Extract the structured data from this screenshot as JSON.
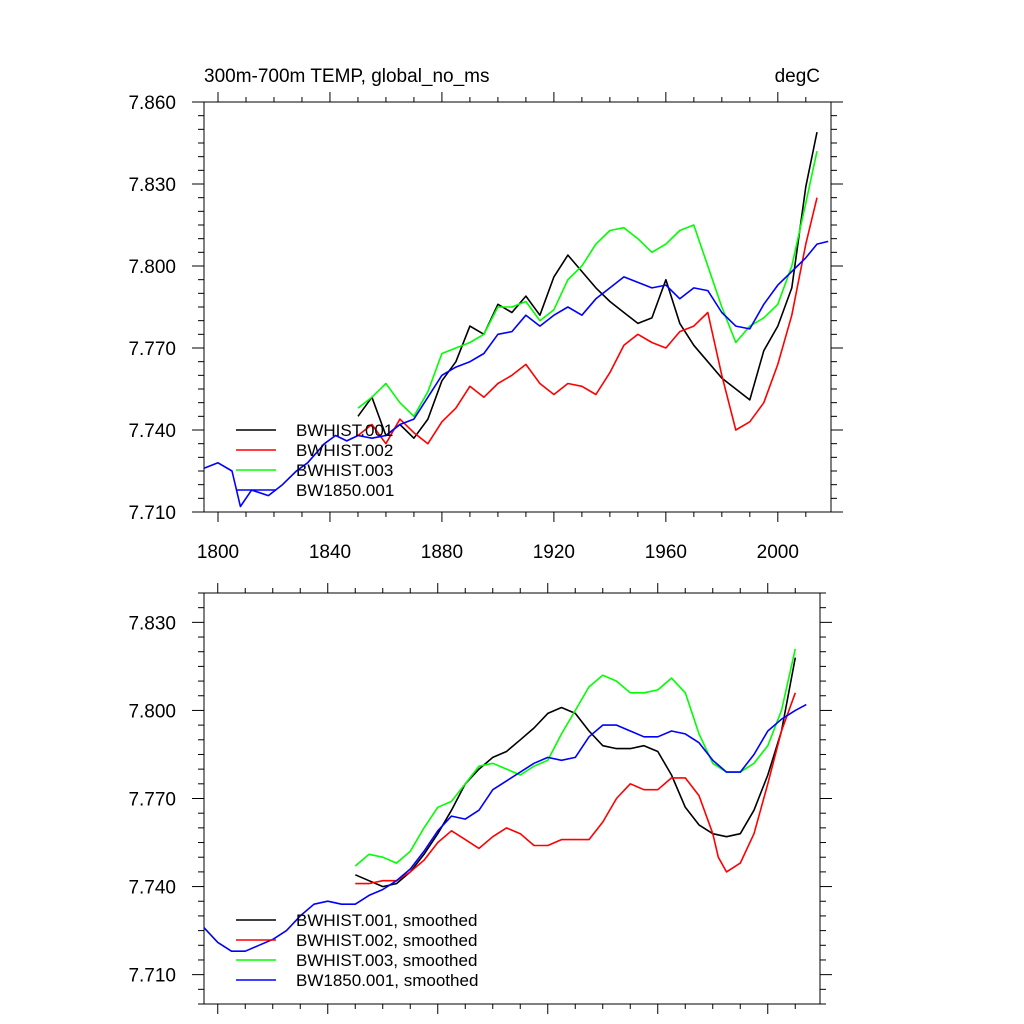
{
  "chart_data": [
    {
      "type": "line",
      "title_left": "300m-700m TEMP, global_no_ms",
      "title_right": "degC",
      "xlabel": "",
      "ylabel": "",
      "xlim": [
        1795,
        2019
      ],
      "ylim": [
        7.71,
        7.86
      ],
      "x_ticks": [
        1800,
        1840,
        1880,
        1920,
        1960,
        2000
      ],
      "y_ticks": [
        7.71,
        7.74,
        7.77,
        7.8,
        7.83,
        7.86
      ],
      "y_tick_labels": [
        "7.710",
        "7.740",
        "7.770",
        "7.800",
        "7.830",
        "7.860"
      ],
      "grid": false,
      "legend_position": "bottom-left",
      "series": [
        {
          "name": "BWHIST.001",
          "color": "#000000",
          "x": [
            1850,
            1855,
            1860,
            1865,
            1870,
            1875,
            1880,
            1885,
            1890,
            1895,
            1900,
            1905,
            1910,
            1915,
            1920,
            1925,
            1930,
            1935,
            1940,
            1945,
            1950,
            1955,
            1960,
            1965,
            1970,
            1975,
            1980,
            1985,
            1990,
            1995,
            2000,
            2005,
            2010,
            2014
          ],
          "y": [
            7.745,
            7.752,
            7.738,
            7.742,
            7.737,
            7.744,
            7.758,
            7.765,
            7.778,
            7.775,
            7.786,
            7.783,
            7.789,
            7.782,
            7.796,
            7.804,
            7.798,
            7.792,
            7.787,
            7.783,
            7.779,
            7.781,
            7.795,
            7.779,
            7.771,
            7.765,
            7.759,
            7.755,
            7.751,
            7.769,
            7.778,
            7.792,
            7.829,
            7.849
          ]
        },
        {
          "name": "BWHIST.002",
          "color": "#ff0000",
          "x": [
            1850,
            1855,
            1860,
            1865,
            1870,
            1875,
            1880,
            1885,
            1890,
            1895,
            1900,
            1905,
            1910,
            1915,
            1920,
            1925,
            1930,
            1935,
            1940,
            1945,
            1950,
            1955,
            1960,
            1965,
            1970,
            1975,
            1980,
            1985,
            1990,
            1995,
            2000,
            2005,
            2010,
            2014
          ],
          "y": [
            7.738,
            7.742,
            7.735,
            7.744,
            7.739,
            7.735,
            7.743,
            7.748,
            7.756,
            7.752,
            7.757,
            7.76,
            7.764,
            7.757,
            7.753,
            7.757,
            7.756,
            7.753,
            7.761,
            7.771,
            7.775,
            7.772,
            7.77,
            7.776,
            7.778,
            7.783,
            7.76,
            7.74,
            7.743,
            7.75,
            7.764,
            7.782,
            7.808,
            7.825
          ]
        },
        {
          "name": "BWHIST.003",
          "color": "#00ff00",
          "x": [
            1850,
            1855,
            1860,
            1865,
            1870,
            1875,
            1880,
            1885,
            1890,
            1895,
            1900,
            1905,
            1910,
            1915,
            1920,
            1925,
            1930,
            1935,
            1940,
            1945,
            1950,
            1955,
            1960,
            1965,
            1970,
            1975,
            1980,
            1985,
            1990,
            1995,
            2000,
            2005,
            2010,
            2014
          ],
          "y": [
            7.748,
            7.752,
            7.757,
            7.75,
            7.745,
            7.754,
            7.768,
            7.77,
            7.772,
            7.775,
            7.785,
            7.785,
            7.787,
            7.78,
            7.784,
            7.795,
            7.8,
            7.808,
            7.813,
            7.814,
            7.81,
            7.805,
            7.808,
            7.813,
            7.815,
            7.8,
            7.785,
            7.772,
            7.778,
            7.781,
            7.786,
            7.8,
            7.823,
            7.842
          ]
        },
        {
          "name": "BW1850.001",
          "color": "#0000ff",
          "x": [
            1795,
            1800,
            1805,
            1808,
            1812,
            1818,
            1823,
            1828,
            1832,
            1838,
            1842,
            1846,
            1850,
            1855,
            1860,
            1865,
            1870,
            1875,
            1880,
            1885,
            1890,
            1895,
            1900,
            1905,
            1910,
            1915,
            1920,
            1925,
            1930,
            1935,
            1940,
            1945,
            1950,
            1955,
            1960,
            1965,
            1970,
            1975,
            1980,
            1985,
            1990,
            1995,
            2000,
            2005,
            2010,
            2014,
            2018
          ],
          "y": [
            7.726,
            7.728,
            7.725,
            7.712,
            7.718,
            7.716,
            7.72,
            7.725,
            7.728,
            7.735,
            7.738,
            7.736,
            7.738,
            7.737,
            7.738,
            7.742,
            7.744,
            7.752,
            7.76,
            7.763,
            7.765,
            7.768,
            7.775,
            7.776,
            7.782,
            7.778,
            7.782,
            7.785,
            7.782,
            7.788,
            7.792,
            7.796,
            7.794,
            7.792,
            7.793,
            7.788,
            7.792,
            7.791,
            7.783,
            7.778,
            7.777,
            7.786,
            7.793,
            7.798,
            7.803,
            7.808,
            7.809
          ]
        }
      ]
    },
    {
      "type": "line",
      "title_left": "",
      "title_right": "",
      "xlabel": "",
      "ylabel": "",
      "xlim": [
        1795,
        2019
      ],
      "ylim": [
        7.7,
        7.84
      ],
      "x_ticks": [
        1800,
        1840,
        1880,
        1920,
        1960,
        2000
      ],
      "y_ticks": [
        7.71,
        7.74,
        7.77,
        7.8,
        7.83
      ],
      "y_tick_labels": [
        "7.710",
        "7.740",
        "7.770",
        "7.800",
        "7.830"
      ],
      "show_x_tick_labels": false,
      "grid": false,
      "legend_position": "bottom-left",
      "series": [
        {
          "name": "BWHIST.001, smoothed",
          "color": "#000000",
          "x": [
            1850,
            1855,
            1860,
            1865,
            1870,
            1875,
            1880,
            1885,
            1890,
            1895,
            1900,
            1905,
            1910,
            1915,
            1920,
            1925,
            1930,
            1935,
            1940,
            1945,
            1950,
            1955,
            1960,
            1965,
            1970,
            1975,
            1980,
            1985,
            1990,
            1995,
            2000,
            2005,
            2010
          ],
          "y": [
            7.744,
            7.742,
            7.74,
            7.741,
            7.745,
            7.751,
            7.758,
            7.766,
            7.775,
            7.78,
            7.784,
            7.786,
            7.79,
            7.794,
            7.799,
            7.801,
            7.799,
            7.793,
            7.788,
            7.787,
            7.787,
            7.788,
            7.786,
            7.778,
            7.767,
            7.761,
            7.758,
            7.757,
            7.758,
            7.766,
            7.778,
            7.793,
            7.818
          ]
        },
        {
          "name": "BWHIST.002, smoothed",
          "color": "#ff0000",
          "x": [
            1850,
            1855,
            1860,
            1865,
            1870,
            1875,
            1880,
            1885,
            1890,
            1895,
            1900,
            1905,
            1910,
            1915,
            1920,
            1925,
            1930,
            1935,
            1940,
            1945,
            1950,
            1955,
            1960,
            1965,
            1970,
            1975,
            1980,
            1982,
            1985,
            1990,
            1995,
            2000,
            2005,
            2010
          ],
          "y": [
            7.741,
            7.741,
            7.742,
            7.742,
            7.745,
            7.749,
            7.755,
            7.759,
            7.756,
            7.753,
            7.757,
            7.76,
            7.758,
            7.754,
            7.754,
            7.756,
            7.756,
            7.756,
            7.762,
            7.77,
            7.775,
            7.773,
            7.773,
            7.777,
            7.777,
            7.771,
            7.758,
            7.75,
            7.745,
            7.748,
            7.758,
            7.775,
            7.793,
            7.806
          ]
        },
        {
          "name": "BWHIST.003, smoothed",
          "color": "#00ff00",
          "x": [
            1850,
            1855,
            1860,
            1865,
            1870,
            1875,
            1880,
            1885,
            1890,
            1895,
            1900,
            1905,
            1910,
            1915,
            1920,
            1925,
            1930,
            1935,
            1940,
            1945,
            1950,
            1955,
            1960,
            1965,
            1970,
            1975,
            1980,
            1985,
            1990,
            1995,
            2000,
            2005,
            2010
          ],
          "y": [
            7.747,
            7.751,
            7.75,
            7.748,
            7.752,
            7.76,
            7.767,
            7.769,
            7.775,
            7.781,
            7.782,
            7.78,
            7.778,
            7.781,
            7.783,
            7.792,
            7.8,
            7.808,
            7.812,
            7.81,
            7.806,
            7.806,
            7.807,
            7.811,
            7.806,
            7.792,
            7.782,
            7.779,
            7.779,
            7.782,
            7.788,
            7.8,
            7.821
          ]
        },
        {
          "name": "BW1850.001, smoothed",
          "color": "#0000ff",
          "x": [
            1795,
            1800,
            1805,
            1810,
            1815,
            1820,
            1825,
            1830,
            1835,
            1840,
            1845,
            1850,
            1855,
            1860,
            1865,
            1870,
            1875,
            1880,
            1885,
            1890,
            1895,
            1900,
            1905,
            1910,
            1915,
            1920,
            1925,
            1930,
            1935,
            1940,
            1945,
            1950,
            1955,
            1960,
            1965,
            1970,
            1975,
            1980,
            1985,
            1990,
            1995,
            2000,
            2005,
            2010,
            2014
          ],
          "y": [
            7.726,
            7.721,
            7.718,
            7.718,
            7.72,
            7.722,
            7.725,
            7.73,
            7.734,
            7.735,
            7.734,
            7.734,
            7.737,
            7.739,
            7.742,
            7.746,
            7.752,
            7.759,
            7.764,
            7.763,
            7.766,
            7.773,
            7.776,
            7.779,
            7.782,
            7.784,
            7.783,
            7.784,
            7.791,
            7.795,
            7.795,
            7.793,
            7.791,
            7.791,
            7.793,
            7.792,
            7.789,
            7.783,
            7.779,
            7.779,
            7.785,
            7.793,
            7.797,
            7.8,
            7.802
          ]
        }
      ]
    }
  ]
}
